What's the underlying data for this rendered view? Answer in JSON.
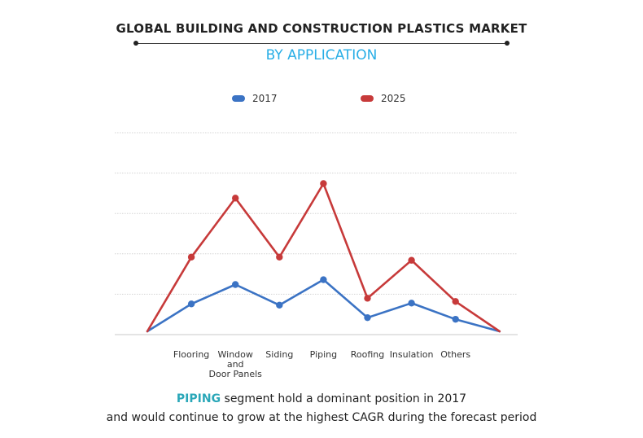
{
  "header": {
    "title": "GLOBAL BUILDING AND CONSTRUCTION PLASTICS MARKET",
    "subtitle": "BY APPLICATION"
  },
  "colors": {
    "series_2017": "#3b73c4",
    "series_2025": "#c73a3a",
    "subtitle": "#29aee6",
    "highlight": "#2aa7b8"
  },
  "caption": {
    "highlight": "PIPING",
    "line1_rest": " segment hold a dominant position in 2017",
    "line2": "and would continue to grow at the highest CAGR during the forecast period"
  },
  "chart_data": {
    "type": "line",
    "legend_position": "top",
    "grid": true,
    "categories": [
      "",
      "Flooring",
      "Window and Door Panels",
      "Siding",
      "Piping",
      "Roofing",
      "Insulation",
      "Others",
      ""
    ],
    "tick_lines": [
      [],
      [
        "Flooring"
      ],
      [
        "Window",
        "and",
        "Door Panels"
      ],
      [
        "Siding"
      ],
      [
        "Piping"
      ],
      [
        "Roofing"
      ],
      [
        "Insulation"
      ],
      [
        "Others"
      ],
      []
    ],
    "ylim": [
      0,
      5
    ],
    "series": [
      {
        "name": "2017",
        "values": [
          0.08,
          0.76,
          1.24,
          0.73,
          1.36,
          0.42,
          0.78,
          0.38,
          0.08
        ]
      },
      {
        "name": "2025",
        "values": [
          0.08,
          1.92,
          3.38,
          1.92,
          3.74,
          0.9,
          1.84,
          0.82,
          0.08
        ]
      }
    ]
  }
}
